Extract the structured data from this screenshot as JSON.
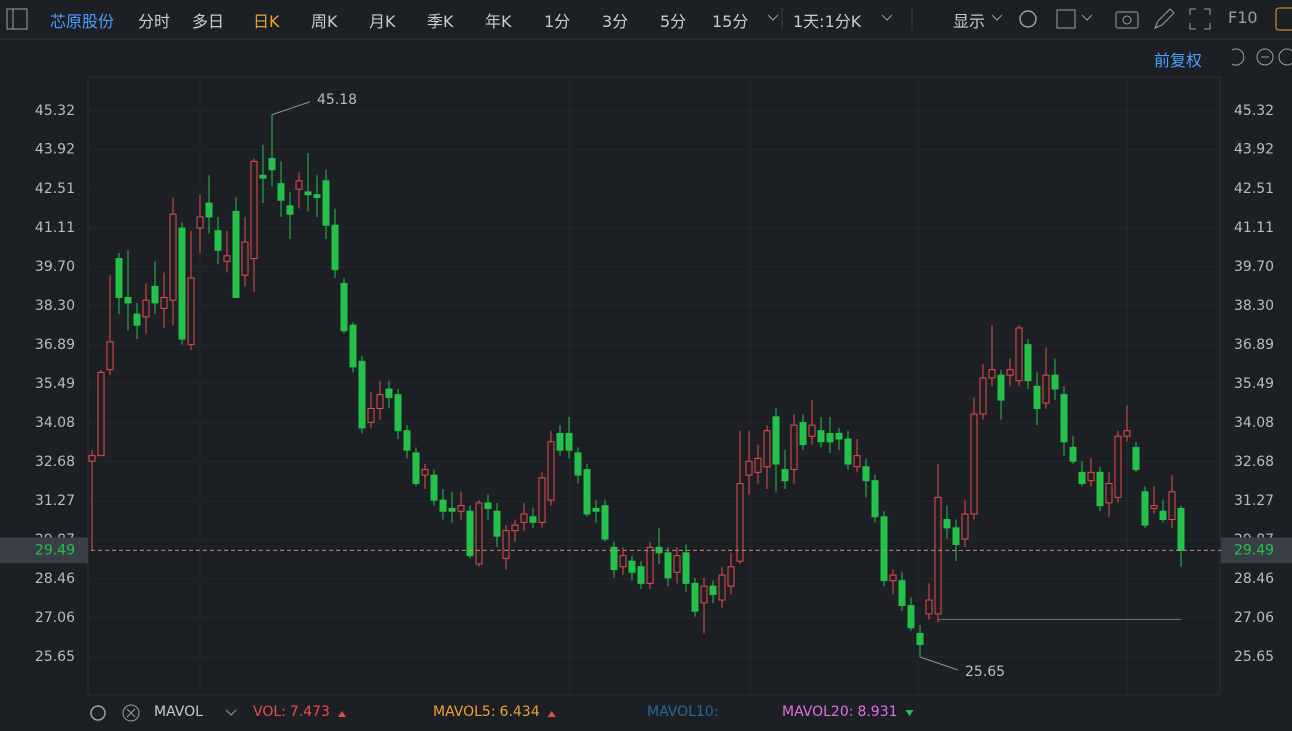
{
  "toolbar": {
    "stock": "芯原股份",
    "periods": [
      "分时",
      "多日",
      "日K",
      "周K",
      "月K",
      "季K",
      "年K",
      "1分",
      "3分",
      "5分",
      "15分"
    ],
    "active_period": 2,
    "interval": "1天:1分K",
    "display": "显示",
    "f10": "F10"
  },
  "adjust": "前复权",
  "chart_data": {
    "type": "candlestick",
    "open": [
      32.7,
      32.9,
      36.0,
      40.0,
      38.6,
      38.0,
      37.9,
      39.0,
      38.2,
      38.5,
      41.1,
      36.9,
      41.1,
      42.0,
      41.0,
      39.9,
      41.7,
      39.4,
      40.0,
      43.0,
      43.6,
      42.7,
      41.9,
      42.5,
      42.4,
      42.3,
      42.8,
      41.2,
      39.1,
      37.6,
      36.3,
      34.1,
      34.6,
      35.3,
      35.1,
      33.8,
      33.0,
      32.2,
      32.2,
      31.3,
      31.0,
      30.9,
      30.9,
      29.0,
      31.2,
      30.9,
      29.2,
      30.2,
      30.5,
      30.7,
      30.5,
      31.3,
      33.7,
      33.7,
      33.0,
      32.4,
      31.0,
      31.1,
      29.6,
      28.9,
      29.1,
      28.9,
      28.3,
      29.6,
      29.4,
      28.7,
      29.4,
      28.3,
      27.6,
      28.2,
      27.7,
      28.2,
      29.1,
      32.2,
      32.3,
      32.5,
      34.3,
      32.4,
      32.4,
      34.1,
      33.6,
      33.8,
      33.7,
      33.7,
      33.5,
      32.5,
      32.5,
      32.0,
      30.7,
      28.4,
      28.4,
      27.5,
      26.5,
      27.2,
      27.2,
      30.6,
      30.3,
      29.9,
      30.8,
      34.4,
      35.7,
      35.8,
      35.8,
      35.6,
      36.9,
      35.4,
      34.8,
      35.8,
      35.1,
      33.2,
      32.3,
      32.0,
      32.3,
      31.2,
      31.4,
      33.6,
      33.2,
      31.6,
      31.0,
      30.9,
      30.6,
      31.0
    ],
    "high": [
      33.1,
      36.0,
      39.4,
      40.2,
      40.3,
      38.4,
      39.1,
      39.9,
      39.5,
      42.2,
      41.3,
      41.0,
      42.3,
      43.0,
      41.5,
      41.0,
      42.2,
      41.5,
      43.6,
      44.1,
      45.18,
      43.5,
      42.4,
      43.1,
      43.8,
      43.0,
      43.2,
      41.8,
      39.3,
      37.7,
      36.5,
      35.2,
      35.6,
      35.6,
      35.3,
      34.0,
      33.2,
      32.6,
      32.4,
      31.7,
      31.6,
      31.6,
      31.1,
      31.3,
      31.5,
      31.2,
      30.4,
      30.6,
      31.2,
      31.0,
      32.3,
      33.8,
      34.0,
      34.3,
      33.2,
      32.6,
      31.3,
      31.3,
      29.8,
      29.6,
      29.3,
      29.1,
      29.8,
      30.3,
      29.6,
      29.6,
      29.7,
      28.5,
      28.5,
      28.4,
      28.9,
      29.4,
      33.8,
      33.8,
      33.3,
      34.0,
      34.6,
      33.1,
      34.4,
      34.4,
      34.9,
      34.3,
      34.3,
      33.9,
      33.8,
      33.5,
      32.8,
      32.2,
      30.9,
      28.8,
      28.7,
      27.8,
      26.8,
      28.3,
      32.6,
      31.1,
      30.6,
      31.3,
      35.0,
      36.2,
      37.6,
      36.0,
      36.4,
      37.6,
      37.1,
      35.9,
      36.8,
      36.4,
      35.4,
      33.6,
      32.7,
      32.8,
      32.5,
      32.3,
      33.8,
      34.7,
      33.4,
      31.8,
      31.8,
      31.3,
      32.2,
      31.1
    ],
    "low": [
      29.5,
      32.9,
      35.8,
      38.0,
      37.4,
      37.1,
      37.3,
      38.0,
      37.5,
      37.6,
      36.9,
      36.7,
      40.2,
      40.9,
      39.8,
      39.5,
      38.6,
      39.0,
      38.8,
      42.0,
      42.6,
      41.5,
      40.7,
      41.8,
      41.7,
      41.5,
      40.7,
      39.3,
      37.3,
      35.9,
      33.7,
      33.9,
      34.2,
      34.6,
      33.5,
      32.8,
      31.8,
      31.7,
      31.1,
      30.6,
      30.5,
      30.6,
      29.2,
      28.9,
      30.6,
      29.6,
      28.8,
      29.8,
      30.2,
      30.3,
      30.3,
      31.1,
      32.9,
      32.8,
      31.9,
      30.7,
      30.5,
      29.8,
      28.5,
      28.6,
      28.4,
      28.1,
      28.1,
      29.0,
      28.2,
      28.3,
      28.0,
      27.1,
      26.5,
      27.6,
      27.4,
      27.9,
      29.0,
      31.5,
      31.9,
      31.7,
      31.6,
      31.7,
      31.9,
      33.1,
      33.3,
      33.2,
      33.0,
      33.1,
      32.4,
      32.3,
      31.4,
      30.5,
      28.2,
      27.9,
      27.3,
      26.6,
      25.65,
      27.0,
      26.9,
      29.9,
      29.1,
      29.6,
      30.6,
      34.2,
      35.4,
      34.2,
      35.4,
      35.4,
      35.3,
      34.0,
      34.6,
      34.9,
      32.9,
      32.6,
      31.8,
      31.8,
      30.9,
      30.7,
      31.2,
      33.4,
      32.3,
      30.3,
      30.8,
      30.5,
      30.3,
      28.9
    ],
    "close": [
      32.9,
      35.9,
      37.0,
      38.6,
      38.4,
      37.6,
      38.5,
      38.4,
      38.6,
      41.6,
      37.1,
      39.3,
      41.5,
      41.5,
      40.3,
      40.1,
      38.6,
      40.6,
      43.5,
      42.9,
      43.2,
      42.1,
      41.6,
      42.8,
      42.3,
      42.2,
      41.2,
      39.6,
      37.4,
      36.1,
      33.9,
      34.6,
      35.1,
      35.0,
      33.8,
      33.1,
      31.9,
      32.4,
      31.3,
      30.9,
      30.9,
      31.1,
      29.3,
      31.2,
      31.0,
      30.0,
      30.2,
      30.4,
      30.8,
      30.5,
      32.1,
      33.4,
      33.1,
      33.1,
      32.2,
      30.8,
      30.9,
      29.9,
      28.8,
      29.3,
      28.7,
      28.3,
      29.6,
      29.4,
      28.5,
      29.3,
      28.3,
      27.3,
      28.2,
      27.9,
      28.6,
      28.9,
      31.9,
      32.7,
      32.8,
      33.8,
      32.6,
      32.0,
      34.0,
      33.3,
      34.0,
      33.4,
      33.4,
      33.5,
      32.6,
      32.9,
      32.0,
      30.7,
      28.4,
      28.6,
      27.5,
      26.7,
      26.1,
      27.7,
      31.4,
      30.3,
      29.7,
      30.8,
      34.4,
      35.7,
      36.0,
      34.9,
      36.0,
      37.5,
      35.6,
      34.6,
      35.8,
      35.3,
      33.4,
      32.7,
      31.9,
      32.3,
      31.1,
      31.9,
      33.6,
      33.8,
      32.4,
      30.4,
      31.1,
      30.6,
      31.6,
      29.49
    ],
    "up_color": "#e84c4c",
    "down_color": "#25c24a",
    "ylim": [
      24.28,
      46.54
    ],
    "yticks": [
      45.32,
      43.92,
      42.51,
      41.11,
      {
        "value": 39.7,
        "label": "39.70"
      },
      {
        "value": 38.3,
        "label": "38.30"
      },
      36.89,
      35.49,
      34.08,
      32.68,
      31.27,
      29.87,
      28.46,
      27.06,
      25.65
    ],
    "grid": true,
    "last_price": 29.49,
    "high_label": 45.18,
    "low_label": 25.65
  },
  "indicator": {
    "name": "MAVOL",
    "items": [
      {
        "label": "VOL:",
        "value": 7.473,
        "color": "#e84c4c",
        "trend": "up"
      },
      {
        "label": "MAVOL5:",
        "value": 6.434,
        "color": "#f0a030",
        "trend": "up"
      },
      {
        "label": "MAVOL10:",
        "color": "#2a6a90"
      },
      {
        "label": "MAVOL20:",
        "value": 8.931,
        "color": "#e070e0",
        "trend": "down"
      }
    ]
  }
}
